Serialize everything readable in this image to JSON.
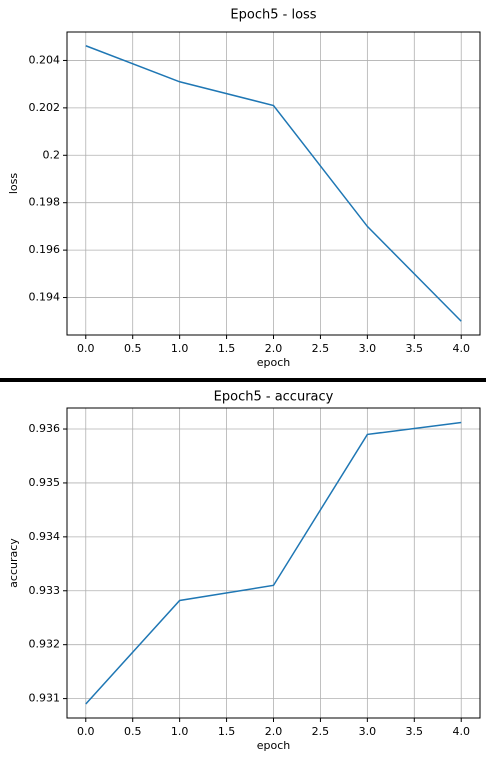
{
  "chart_data": [
    {
      "type": "line",
      "title": "Epoch5 - loss",
      "x_label": "epoch",
      "y_label": "loss",
      "x": [
        0,
        1,
        2,
        3,
        4
      ],
      "series": [
        {
          "name": "loss",
          "color": "#1f77b4",
          "values": [
            0.20462,
            0.2031,
            0.2021,
            0.197,
            0.193
          ]
        }
      ],
      "xlim": [
        -0.2,
        4.2
      ],
      "xticks": [
        {
          "value": 0,
          "label": "0.0"
        },
        0.5,
        {
          "value": 1,
          "label": "1.0"
        },
        1.5,
        {
          "value": 2,
          "label": "2.0"
        },
        2.5,
        {
          "value": 3,
          "label": "3.0"
        },
        3.5,
        {
          "value": 4,
          "label": "4.0"
        }
      ],
      "ylim": [
        0.19242,
        0.2052
      ],
      "yticks": [
        0.194,
        0.196,
        0.198,
        0.2,
        0.202,
        0.204
      ],
      "grid": true
    },
    {
      "type": "line",
      "title": "Epoch5 - accuracy",
      "x_label": "epoch",
      "y_label": "accuracy",
      "x": [
        0,
        1,
        2,
        3,
        4
      ],
      "series": [
        {
          "name": "accuracy",
          "color": "#1f77b4",
          "values": [
            0.9309,
            0.93282,
            0.9331,
            0.9359,
            0.93612
          ]
        }
      ],
      "xlim": [
        -0.2,
        4.2
      ],
      "xticks": [
        {
          "value": 0,
          "label": "0.0"
        },
        0.5,
        {
          "value": 1,
          "label": "1.0"
        },
        1.5,
        {
          "value": 2,
          "label": "2.0"
        },
        2.5,
        {
          "value": 3,
          "label": "3.0"
        },
        3.5,
        {
          "value": 4,
          "label": "4.0"
        }
      ],
      "ylim": [
        0.93064,
        0.93639
      ],
      "yticks": [
        0.931,
        0.932,
        0.933,
        0.934,
        0.935,
        0.936
      ],
      "grid": true
    }
  ]
}
